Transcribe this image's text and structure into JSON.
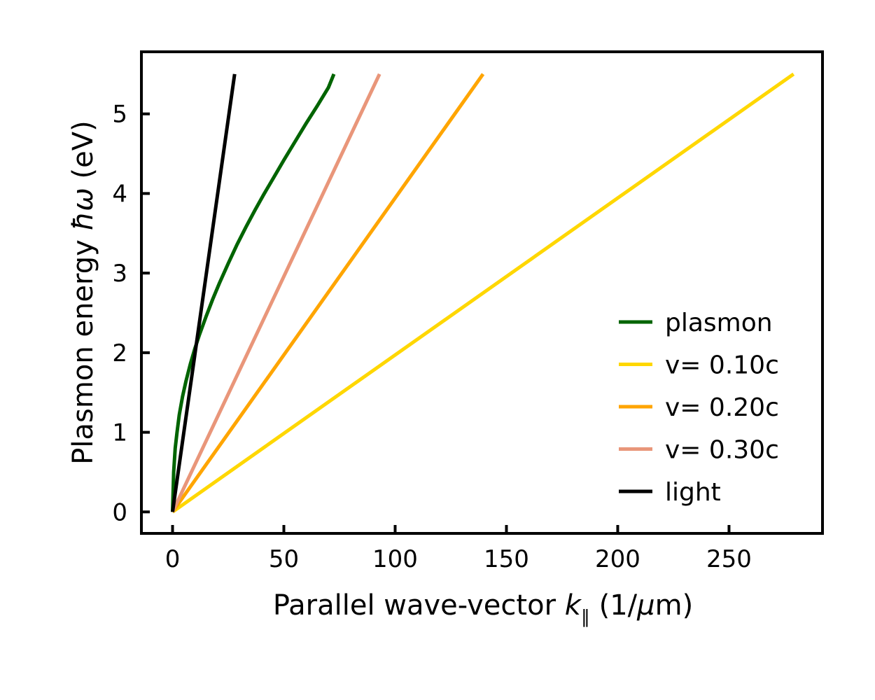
{
  "chart_data": {
    "type": "line",
    "xlabel": "Parallel wave-vector k∥ (1/μm)",
    "ylabel": "Plasmon energy ħω (eV)",
    "xlim": [
      -14,
      292
    ],
    "ylim": [
      -0.27,
      5.78
    ],
    "xticks": [
      0,
      50,
      100,
      150,
      200,
      250
    ],
    "yticks": [
      0,
      1,
      2,
      3,
      4,
      5
    ],
    "grid": false,
    "legend_position": "lower-right",
    "series": [
      {
        "name": "plasmon",
        "color": "#006400",
        "x": [
          0,
          0.5,
          1.2,
          2,
          3,
          4.5,
          6,
          8,
          10,
          12,
          15,
          18,
          21,
          25,
          29,
          33,
          37,
          41,
          45,
          50,
          55,
          60,
          65,
          70,
          72.5
        ],
        "y": [
          0,
          0.5,
          0.8,
          1.0,
          1.22,
          1.45,
          1.64,
          1.86,
          2.05,
          2.22,
          2.45,
          2.67,
          2.87,
          3.12,
          3.36,
          3.58,
          3.79,
          3.99,
          4.18,
          4.42,
          4.65,
          4.88,
          5.1,
          5.33,
          5.5
        ]
      },
      {
        "name": "v= 0.10c",
        "color": "#FFD700",
        "x": [
          0,
          279
        ],
        "y": [
          0,
          5.5
        ]
      },
      {
        "name": "v= 0.20c",
        "color": "#FFA500",
        "x": [
          0,
          139.5
        ],
        "y": [
          0,
          5.5
        ]
      },
      {
        "name": "v= 0.30c",
        "color": "#E9967A",
        "x": [
          0,
          93
        ],
        "y": [
          0,
          5.5
        ]
      },
      {
        "name": "light",
        "color": "#000000",
        "x": [
          0,
          27.9
        ],
        "y": [
          0,
          5.5
        ]
      }
    ]
  }
}
